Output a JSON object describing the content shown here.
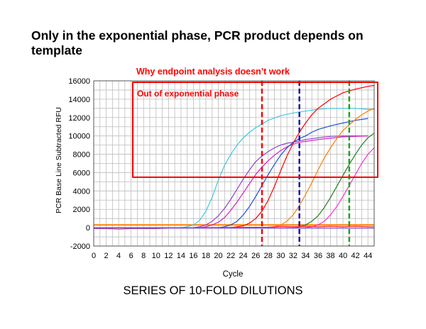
{
  "slide": {
    "title": "Only in the exponential phase, PCR product depends on template",
    "caption": "SERIES OF 10-FOLD DILUTIONS"
  },
  "colors": {
    "highlight": "#ff0000",
    "grid": "#bdbdbd",
    "baseline": "#ff8000"
  },
  "chart_data": {
    "type": "line",
    "title": "Why endpoint analysis doesn’t work",
    "xlabel": "Cycle",
    "ylabel": "PCR Base Line Subtracted RFU",
    "xlim": [
      0,
      45
    ],
    "ylim": [
      -2000,
      16000
    ],
    "x_ticks": [
      0,
      2,
      4,
      6,
      8,
      10,
      12,
      14,
      16,
      18,
      20,
      22,
      24,
      26,
      28,
      30,
      32,
      34,
      36,
      38,
      40,
      42,
      44
    ],
    "y_ticks": [
      -2000,
      0,
      2000,
      4000,
      6000,
      8000,
      10000,
      12000,
      14000,
      16000
    ],
    "grid": true,
    "annotations": {
      "box_label": "Out of exponential phase",
      "box_range": {
        "x": [
          4.5,
          45
        ],
        "y": [
          5500,
          16000
        ]
      },
      "box_color": "#ff0000"
    },
    "vlines": [
      {
        "x": 27,
        "color": "#ff0000"
      },
      {
        "x": 33,
        "color": "#1a1aa6"
      },
      {
        "x": 41,
        "color": "#20a020"
      }
    ],
    "baseline_threshold": 300,
    "series": [
      {
        "color": "#40c8e0",
        "x": [
          0,
          12,
          14,
          15,
          16,
          17,
          18,
          19,
          20,
          21,
          22,
          23,
          24,
          25,
          26,
          27,
          28,
          30,
          32,
          34,
          36,
          38,
          40,
          42,
          44,
          45
        ],
        "y": [
          0,
          0,
          0,
          100,
          300,
          800,
          1800,
          3300,
          5200,
          6800,
          8000,
          9000,
          9800,
          10400,
          10900,
          11300,
          11700,
          12200,
          12500,
          12700,
          12900,
          13000,
          13000,
          13000,
          12900,
          12900
        ]
      },
      {
        "color": "#9040d0",
        "x": [
          0,
          16,
          17,
          18,
          19,
          20,
          21,
          22,
          23,
          24,
          25,
          26,
          27,
          28,
          29,
          30,
          31,
          32,
          33,
          34,
          36,
          38,
          40,
          42,
          44
        ],
        "y": [
          0,
          0,
          100,
          300,
          700,
          1300,
          2100,
          3100,
          4200,
          5300,
          6300,
          7200,
          7800,
          8300,
          8700,
          9000,
          9200,
          9300,
          9450,
          9600,
          9800,
          9950,
          10000,
          10000,
          10000
        ]
      },
      {
        "color": "#d020c0",
        "x": [
          0,
          17,
          18,
          19,
          20,
          21,
          22,
          23,
          24,
          25,
          26,
          27,
          28,
          29,
          30,
          31,
          32,
          33,
          34,
          36,
          38,
          40,
          42,
          44
        ],
        "y": [
          0,
          0,
          100,
          300,
          600,
          1100,
          1900,
          2800,
          3800,
          4800,
          5800,
          6600,
          7300,
          7900,
          8400,
          8800,
          9100,
          9300,
          9400,
          9600,
          9750,
          9900,
          9950,
          10000
        ]
      },
      {
        "color": "#2050d0",
        "x": [
          0,
          20,
          21,
          22,
          23,
          24,
          25,
          26,
          27,
          28,
          29,
          30,
          31,
          32,
          33,
          34,
          35,
          36,
          38,
          40,
          42,
          44
        ],
        "y": [
          0,
          0,
          100,
          300,
          700,
          1400,
          2300,
          3400,
          4600,
          5800,
          6900,
          7900,
          8700,
          9300,
          9700,
          10000,
          10400,
          10700,
          11100,
          11400,
          11700,
          11900
        ]
      },
      {
        "color": "#ff0000",
        "x": [
          0,
          22,
          23,
          24,
          25,
          26,
          27,
          28,
          29,
          30,
          31,
          32,
          33,
          34,
          35,
          36,
          37,
          38,
          40,
          42,
          44,
          45
        ],
        "y": [
          0,
          0,
          100,
          200,
          500,
          1000,
          1800,
          3000,
          4500,
          6200,
          7800,
          9200,
          10400,
          11400,
          12300,
          13000,
          13500,
          14000,
          14700,
          15100,
          15400,
          15500
        ]
      },
      {
        "color": "#ff8000",
        "x": [
          0,
          28,
          29,
          30,
          31,
          32,
          33,
          34,
          35,
          36,
          37,
          38,
          39,
          40,
          41,
          42,
          43,
          44,
          45
        ],
        "y": [
          0,
          0,
          100,
          300,
          700,
          1400,
          2400,
          3600,
          4900,
          6300,
          7600,
          8700,
          9700,
          10600,
          11200,
          11800,
          12300,
          12700,
          13000
        ]
      },
      {
        "color": "#208020",
        "x": [
          0,
          32,
          33,
          34,
          35,
          36,
          37,
          38,
          39,
          40,
          41,
          42,
          43,
          44,
          45
        ],
        "y": [
          0,
          0,
          100,
          300,
          700,
          1300,
          2200,
          3300,
          4500,
          5700,
          6900,
          8000,
          9000,
          9800,
          10300
        ]
      },
      {
        "color": "#ff30d0",
        "x": [
          0,
          34,
          35,
          36,
          37,
          38,
          39,
          40,
          41,
          42,
          43,
          44,
          45
        ],
        "y": [
          0,
          0,
          100,
          300,
          700,
          1400,
          2300,
          3400,
          4600,
          5800,
          7000,
          8000,
          8700
        ]
      },
      {
        "color": "#ff2020",
        "x": [
          0,
          16,
          28,
          30,
          32,
          34,
          36,
          38,
          40,
          42,
          44,
          45
        ],
        "y": [
          0,
          0,
          50,
          150,
          100,
          150,
          100,
          150,
          100,
          150,
          100,
          100
        ]
      },
      {
        "color": "#7050e0",
        "x": [
          0,
          2,
          4,
          6,
          8,
          10,
          12,
          14,
          16,
          18,
          20,
          22,
          24,
          26,
          28,
          30,
          32,
          34,
          36,
          38,
          40,
          42,
          44,
          45
        ],
        "y": [
          -100,
          -100,
          -150,
          -100,
          -100,
          -100,
          -50,
          -50,
          -50,
          -50,
          -50,
          -50,
          -50,
          -50,
          -50,
          -50,
          -50,
          -50,
          -50,
          -50,
          -50,
          -50,
          -50,
          -50
        ]
      }
    ]
  }
}
